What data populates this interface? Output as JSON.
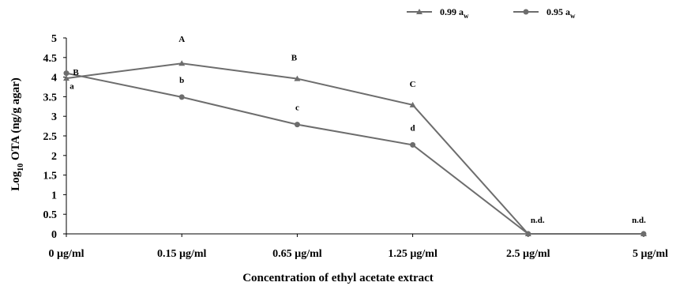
{
  "chart_data": {
    "type": "line",
    "categories": [
      "0 µg/ml",
      "0.15 µg/ml",
      "0.65 µg/ml",
      "1.25 µg/ml",
      "2.5 µg/ml",
      "5 µg/ml"
    ],
    "xlabel": "Concentration of ethyl acetate extract",
    "ylabel": {
      "prefix": "Log",
      "sub": "10",
      "suffix": " OTA (ng/g agar)"
    },
    "ylim": [
      0,
      5
    ],
    "yticks": [
      "0",
      "0.5",
      "1",
      "1.5",
      "2",
      "2.5",
      "3",
      "3.5",
      "4",
      "4.5",
      "5"
    ],
    "grid": false,
    "legend_position": "top-right",
    "line_color": "#6d6d6d",
    "series": [
      {
        "name": {
          "main": "0.99 a",
          "sub": "w"
        },
        "marker": "triangle",
        "values": [
          3.97,
          4.35,
          3.96,
          3.29,
          0,
          0
        ],
        "labels": [
          "B",
          "A",
          "B",
          "C",
          "",
          ""
        ]
      },
      {
        "name": {
          "main": "0.95 a",
          "sub": "w"
        },
        "marker": "circle",
        "values": [
          4.1,
          3.49,
          2.79,
          2.27,
          0,
          0
        ],
        "labels": [
          "a",
          "b",
          "c",
          "d",
          "n.d.",
          "n.d."
        ]
      }
    ]
  }
}
